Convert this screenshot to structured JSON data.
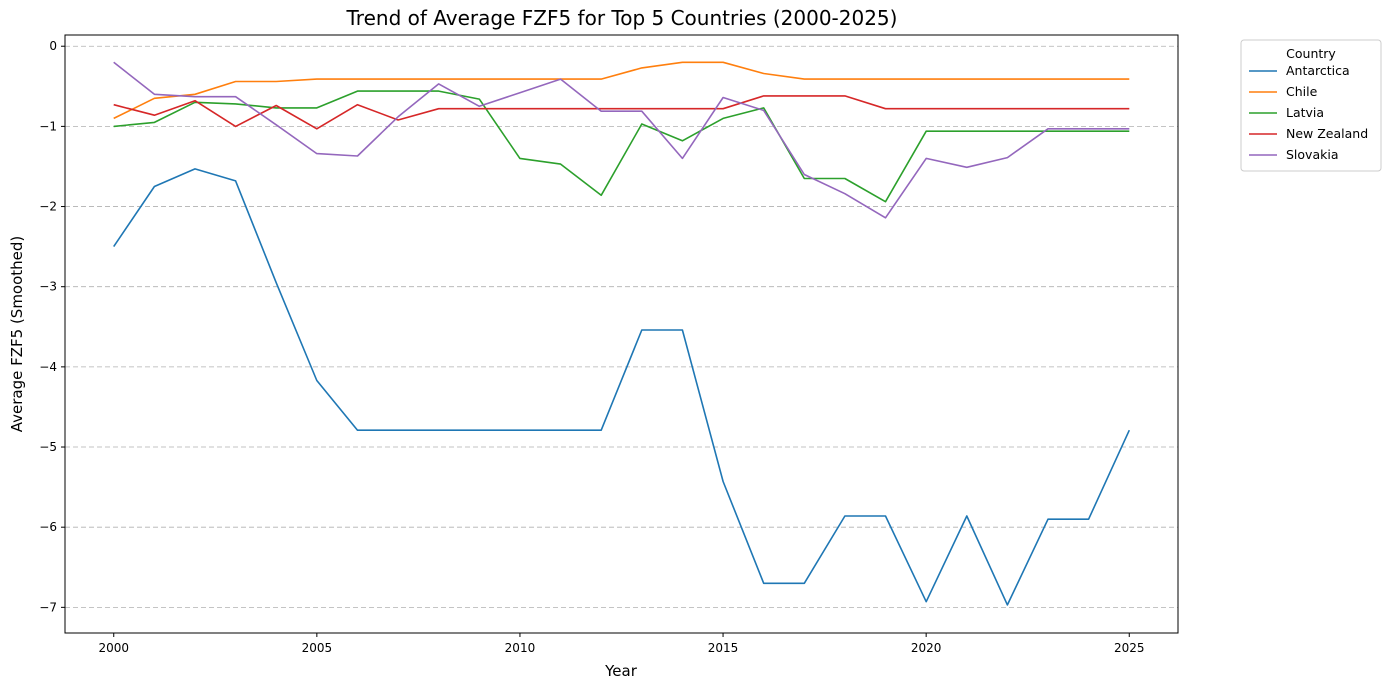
{
  "chart_data": {
    "type": "line",
    "title": "Trend of Average FZF5 for Top 5 Countries (2000-2025)",
    "xlabel": "Year",
    "ylabel": "Average FZF5 (Smoothed)",
    "xlim": [
      1998.8,
      2026.2
    ],
    "ylim": [
      -7.32,
      0.14
    ],
    "x_ticks": [
      2000,
      2005,
      2010,
      2015,
      2020,
      2025
    ],
    "y_ticks": [
      0,
      -1,
      -2,
      -3,
      -4,
      -5,
      -6,
      -7
    ],
    "y_tick_labels": [
      "0",
      "−1",
      "−2",
      "−3",
      "−4",
      "−5",
      "−6",
      "−7"
    ],
    "grid": "y-dashed",
    "legend_title": "Country",
    "legend_position": "outside-top-right",
    "x": [
      2000,
      2001,
      2002,
      2003,
      2004,
      2005,
      2006,
      2007,
      2008,
      2009,
      2010,
      2011,
      2012,
      2013,
      2014,
      2015,
      2016,
      2017,
      2018,
      2019,
      2020,
      2021,
      2022,
      2023,
      2024,
      2025
    ],
    "series": [
      {
        "name": "Antarctica",
        "color": "#1f77b4",
        "values": [
          -2.5,
          -1.75,
          -1.53,
          -1.68,
          -2.95,
          -4.17,
          -4.79,
          -4.79,
          -4.79,
          -4.79,
          -4.79,
          -4.79,
          -4.79,
          -3.54,
          -3.54,
          -5.43,
          -6.7,
          -6.7,
          -5.86,
          -5.86,
          -6.93,
          -5.86,
          -6.97,
          -5.9,
          -5.9,
          -4.79
        ]
      },
      {
        "name": "Chile",
        "color": "#ff7f0e",
        "values": [
          -0.9,
          -0.65,
          -0.6,
          -0.44,
          -0.44,
          -0.41,
          -0.41,
          -0.41,
          -0.41,
          -0.41,
          -0.41,
          -0.41,
          -0.41,
          -0.27,
          -0.2,
          -0.2,
          -0.34,
          -0.41,
          -0.41,
          -0.41,
          -0.41,
          -0.41,
          -0.41,
          -0.41,
          -0.41,
          -0.41
        ]
      },
      {
        "name": "Latvia",
        "color": "#2ca02c",
        "values": [
          -1.0,
          -0.95,
          -0.7,
          -0.72,
          -0.77,
          -0.77,
          -0.56,
          -0.56,
          -0.56,
          -0.66,
          -1.4,
          -1.47,
          -1.86,
          -0.97,
          -1.18,
          -0.9,
          -0.77,
          -1.65,
          -1.65,
          -1.94,
          -1.06,
          -1.06,
          -1.06,
          -1.06,
          -1.06,
          -1.06
        ]
      },
      {
        "name": "New Zealand",
        "color": "#d62728",
        "values": [
          -0.73,
          -0.86,
          -0.68,
          -1.0,
          -0.74,
          -1.03,
          -0.73,
          -0.92,
          -0.78,
          -0.78,
          -0.78,
          -0.78,
          -0.78,
          -0.78,
          -0.78,
          -0.78,
          -0.62,
          -0.62,
          -0.62,
          -0.78,
          -0.78,
          -0.78,
          -0.78,
          -0.78,
          -0.78,
          -0.78
        ]
      },
      {
        "name": "Slovakia",
        "color": "#9467bd",
        "values": [
          -0.2,
          -0.6,
          -0.63,
          -0.63,
          -0.98,
          -1.34,
          -1.37,
          -0.88,
          -0.47,
          -0.75,
          -0.58,
          -0.41,
          -0.81,
          -0.81,
          -1.4,
          -0.64,
          -0.8,
          -1.6,
          -1.84,
          -2.14,
          -1.4,
          -1.51,
          -1.39,
          -1.03,
          -1.03,
          -1.03
        ]
      }
    ]
  }
}
